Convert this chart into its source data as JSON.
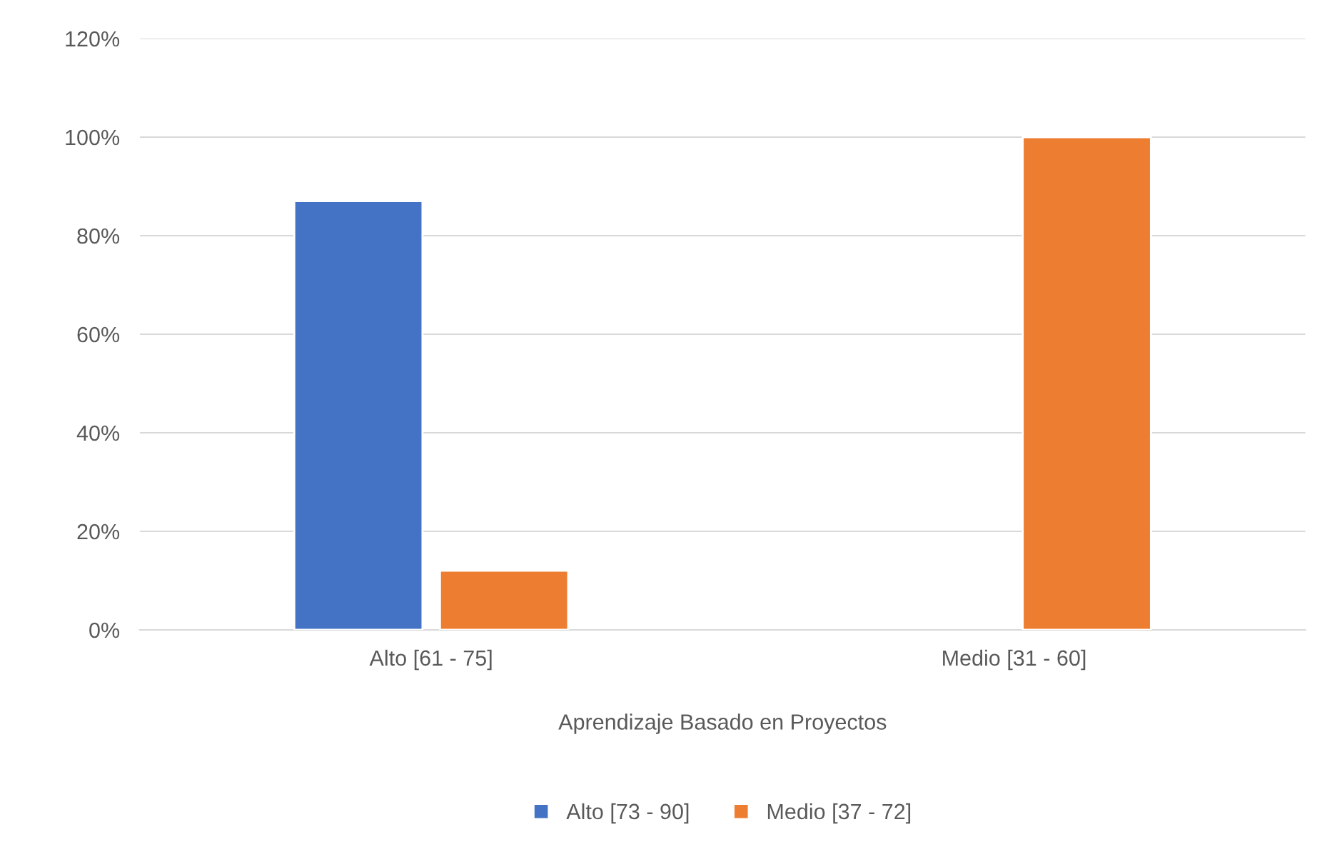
{
  "chart_data": {
    "type": "bar",
    "categories": [
      "Alto [61 - 75]",
      "Medio [31 - 60]"
    ],
    "xlabel": "Aprendizaje Basado en Proyectos",
    "series": [
      {
        "name": "Alto [73 - 90]",
        "color": "#4472c4",
        "values": [
          87,
          null
        ]
      },
      {
        "name": "Medio [37 - 72]",
        "color": "#ed7d31",
        "values": [
          12,
          100
        ]
      }
    ],
    "ylim": [
      0,
      120
    ],
    "yticks": [
      {
        "value": 0,
        "label": "0%"
      },
      {
        "value": 20,
        "label": "20%"
      },
      {
        "value": 40,
        "label": "40%"
      },
      {
        "value": 60,
        "label": "60%"
      },
      {
        "value": 80,
        "label": "80%"
      },
      {
        "value": 100,
        "label": "100%"
      },
      {
        "value": 120,
        "label": "120%"
      }
    ],
    "grid": "y",
    "legend": "bottom"
  }
}
